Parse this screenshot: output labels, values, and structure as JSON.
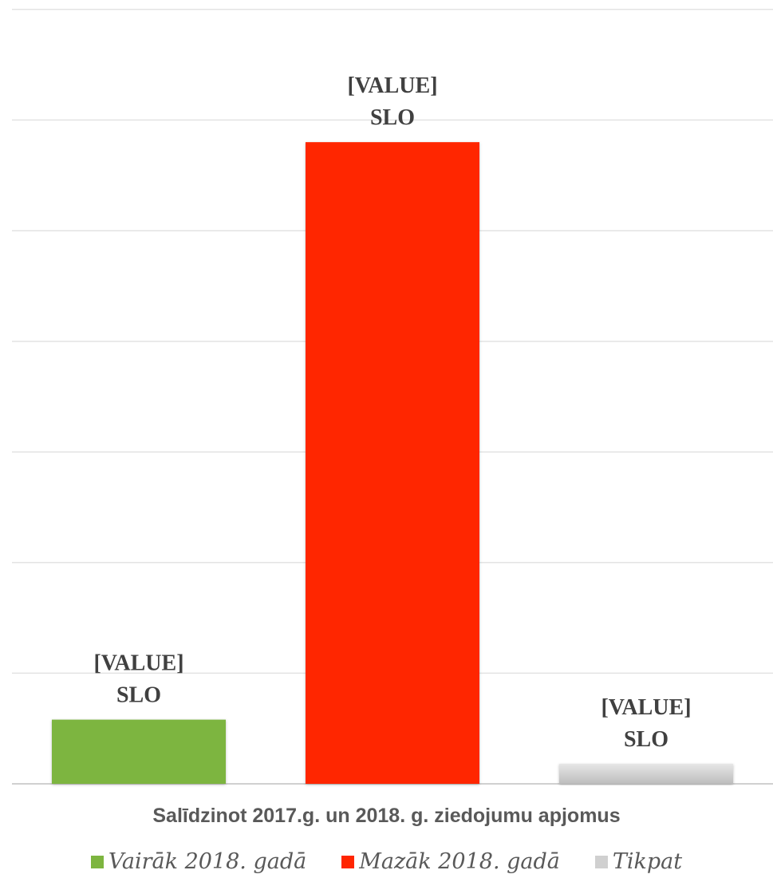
{
  "chart_data": {
    "type": "bar",
    "title": "",
    "xlabel": "Salīdzinot 2017.g. un 2018. g. ziedojumu apjomus",
    "ylabel": "",
    "grid": true,
    "legend_position": "bottom",
    "ylim": [
      0,
      7
    ],
    "series": [
      {
        "name": "Vairāk 2018. gadā",
        "value": 0.58,
        "color": "#7DB53F",
        "label": "[VALUE]\nSLO"
      },
      {
        "name": "Mazāk 2018. gadā",
        "value": 5.8,
        "color": "#FF2500",
        "label": "[VALUE]\nSLO"
      },
      {
        "name": "Tikpat",
        "value": 0.18,
        "color": "#D0D0D0",
        "label": "[VALUE]\nSLO"
      }
    ]
  }
}
